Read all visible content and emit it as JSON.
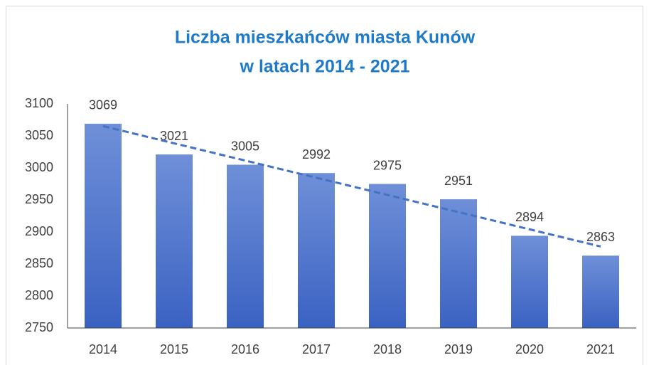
{
  "chart_data": {
    "type": "bar",
    "title": [
      "Liczba mieszkańców miasta Kunów",
      "w latach 2014 - 2021"
    ],
    "categories": [
      "2014",
      "2015",
      "2016",
      "2017",
      "2018",
      "2019",
      "2020",
      "2021"
    ],
    "values": [
      3069,
      3021,
      3005,
      2992,
      2975,
      2951,
      2894,
      2863
    ],
    "color": "#4a72cc",
    "ylim": [
      2750,
      3100
    ],
    "yticks": [
      2750,
      2800,
      2850,
      2900,
      2950,
      3000,
      3050,
      3100
    ],
    "grid": false,
    "trendline": true,
    "trendline_color": "#4472c4"
  }
}
